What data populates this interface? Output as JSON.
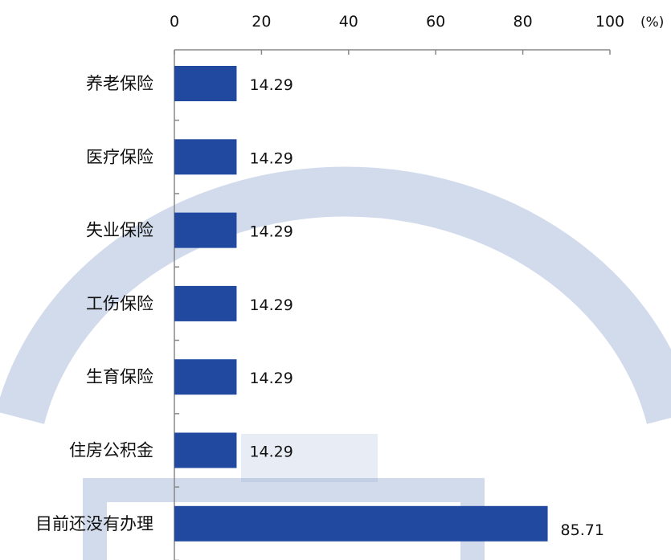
{
  "chart_data": {
    "type": "bar",
    "orientation": "horizontal",
    "categories": [
      "养老保险",
      "医疗保险",
      "失业保险",
      "工伤保险",
      "生育保险",
      "住房公积金",
      "目前还没有办理"
    ],
    "values": [
      14.29,
      14.29,
      14.29,
      14.29,
      14.29,
      14.29,
      85.71
    ],
    "value_labels": [
      "14.29",
      "14.29",
      "14.29",
      "14.29",
      "14.29",
      "14.29",
      "85.71"
    ],
    "xlim": [
      0,
      100
    ],
    "x_ticks": [
      0,
      20,
      40,
      60,
      80,
      100
    ],
    "x_tick_labels": [
      "0",
      "20",
      "40",
      "60",
      "80",
      "100"
    ],
    "axis_position": "top",
    "unit": "(%)",
    "grid": false,
    "bar_color": "#2149a0",
    "title": "",
    "xlabel": "",
    "ylabel": ""
  },
  "watermark_color": "#5d7fba"
}
